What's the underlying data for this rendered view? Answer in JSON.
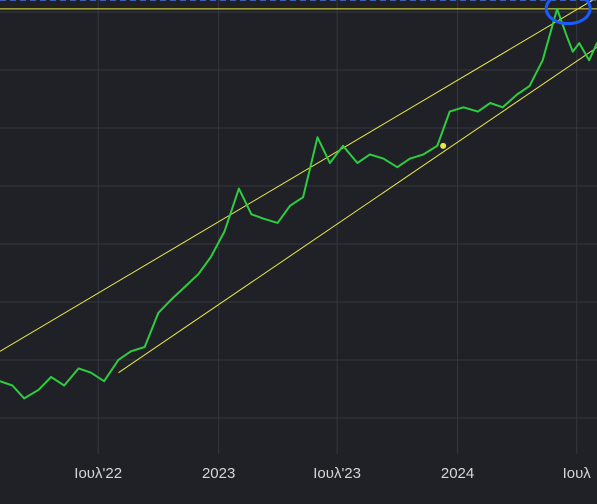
{
  "chart_data": {
    "type": "line",
    "title": "",
    "xlabel": "",
    "ylabel": "",
    "x_ticks": [
      {
        "date": "2022-07-01",
        "label": "Ιουλ'22"
      },
      {
        "date": "2023-01-01",
        "label": "2023"
      },
      {
        "date": "2023-07-01",
        "label": "Ιουλ'23"
      },
      {
        "date": "2024-01-01",
        "label": "2024"
      },
      {
        "date": "2024-07-01",
        "label": "Ιουλ"
      }
    ],
    "xlim": [
      "2022-02-01",
      "2024-08-01"
    ],
    "ylim": [
      0,
      100
    ],
    "grid": true,
    "series": [
      {
        "color": "#2ecc40",
        "x": [
          "2022-02-01",
          "2022-02-20",
          "2022-03-10",
          "2022-04-01",
          "2022-04-20",
          "2022-05-10",
          "2022-06-01",
          "2022-06-20",
          "2022-07-10",
          "2022-08-01",
          "2022-08-20",
          "2022-09-10",
          "2022-10-01",
          "2022-10-20",
          "2022-11-10",
          "2022-12-01",
          "2022-12-20",
          "2023-01-10",
          "2023-02-01",
          "2023-02-20",
          "2023-03-10",
          "2023-04-01",
          "2023-04-20",
          "2023-05-10",
          "2023-06-01",
          "2023-06-20",
          "2023-07-10",
          "2023-08-01",
          "2023-08-20",
          "2023-09-10",
          "2023-10-01",
          "2023-10-20",
          "2023-11-10",
          "2023-12-01",
          "2023-12-20",
          "2024-01-10",
          "2024-02-01",
          "2024-02-20",
          "2024-03-10",
          "2024-04-01",
          "2024-04-20",
          "2024-05-10",
          "2024-06-01",
          "2024-06-15",
          "2024-06-25",
          "2024-07-05",
          "2024-07-20",
          "2024-08-01"
        ],
        "values": [
          17,
          16,
          13,
          15,
          18,
          16,
          20,
          19,
          17,
          22,
          24,
          25,
          33,
          36,
          39,
          42,
          46,
          52,
          62,
          56,
          55,
          54,
          58,
          60,
          74,
          68,
          72,
          68,
          70,
          69,
          67,
          69,
          70,
          72,
          80,
          81,
          80,
          82,
          81,
          84,
          86,
          92,
          104,
          98,
          94,
          96,
          92,
          96
        ]
      }
    ],
    "trend_lines": [
      {
        "color": "#e8e84a",
        "x": [
          "2022-02-01",
          "2024-07-25"
        ],
        "y": [
          24,
          106
        ]
      },
      {
        "color": "#e8e84a",
        "x": [
          "2022-08-01",
          "2024-08-01"
        ],
        "y": [
          19,
          95
        ]
      }
    ],
    "horizontal_lines": [
      {
        "color": "#e8e84a",
        "style": "solid",
        "y": 104
      },
      {
        "color": "#4466cc",
        "style": "dashed",
        "y": 106
      }
    ],
    "marker_point": {
      "color": "#e8e84a",
      "x": "2023-12-10",
      "y": 72
    },
    "annotation": {
      "type": "hand-drawn circle",
      "color": "#1a5cff",
      "x": "2024-06-18",
      "y": 105
    }
  }
}
